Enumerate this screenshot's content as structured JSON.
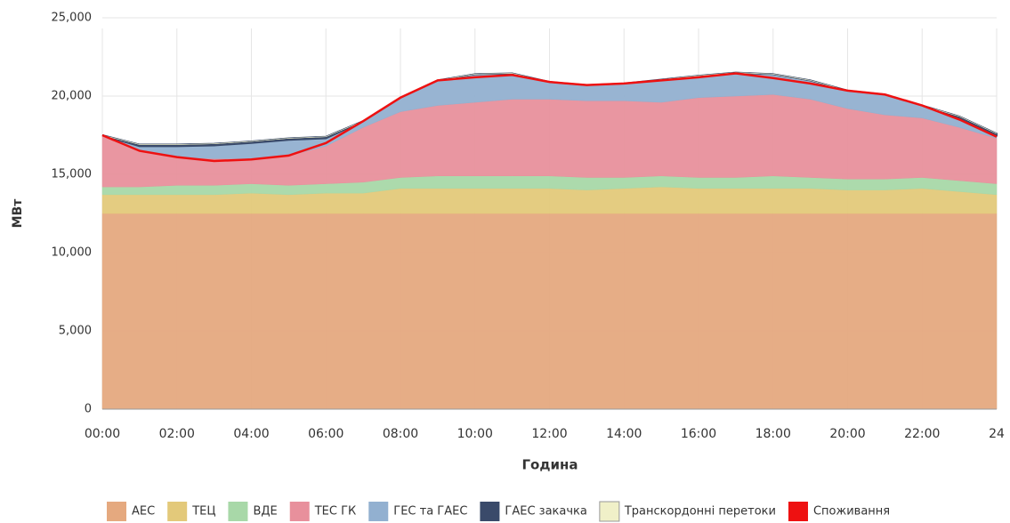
{
  "chart_data": {
    "type": "stacked_area",
    "y_label": "МВт",
    "x_label": "Година",
    "categories": [
      "00:00",
      null,
      "02:00",
      null,
      "04:00",
      null,
      "06:00",
      null,
      "08:00",
      null,
      "10:00",
      null,
      "12:00",
      null,
      "14:00",
      null,
      "16:00",
      null,
      "18:00",
      null,
      "20:00",
      null,
      "22:00",
      null,
      "24"
    ],
    "ylim": [
      0,
      25000
    ],
    "yticks": [
      0,
      {
        "value": 5000,
        "label": "5,000"
      },
      {
        "value": 10000,
        "label": "10,000"
      },
      {
        "value": 15000,
        "label": "15,000"
      },
      {
        "value": 20000,
        "label": "20,000"
      },
      {
        "value": 25000,
        "label": "25,000"
      }
    ],
    "grid": true,
    "legend": "bottom",
    "series": [
      {
        "name": "АЕС",
        "color": "#e5a97f",
        "values": [
          12500,
          12500,
          12500,
          12500,
          12500,
          12500,
          12500,
          12500,
          12500,
          12500,
          12500,
          12500,
          12500,
          12500,
          12500,
          12500,
          12500,
          12500,
          12500,
          12500,
          12500,
          12500,
          12500,
          12500,
          12500
        ]
      },
      {
        "name": "ТЕЦ",
        "color": "#e3c97a",
        "values": [
          1200,
          1200,
          1200,
          1200,
          1300,
          1200,
          1300,
          1300,
          1600,
          1600,
          1600,
          1600,
          1600,
          1500,
          1600,
          1700,
          1600,
          1600,
          1600,
          1600,
          1500,
          1500,
          1600,
          1400,
          1200
        ]
      },
      {
        "name": "ВДЕ",
        "color": "#a8d8a8",
        "values": [
          500,
          500,
          600,
          600,
          600,
          600,
          600,
          700,
          700,
          800,
          800,
          800,
          800,
          800,
          700,
          700,
          700,
          700,
          800,
          700,
          700,
          700,
          700,
          700,
          700
        ]
      },
      {
        "name": "ТЕС ГК",
        "color": "#e8909c",
        "values": [
          3300,
          2300,
          1800,
          1700,
          1600,
          1900,
          2400,
          3500,
          4200,
          4500,
          4700,
          4900,
          4900,
          4900,
          4900,
          4700,
          5100,
          5200,
          5200,
          5000,
          4500,
          4100,
          3800,
          3400,
          2900
        ]
      },
      {
        "name": "ГЕС та ГАЕС",
        "color": "#92b0d0",
        "values": [
          0,
          300,
          700,
          850,
          1000,
          1000,
          500,
          400,
          900,
          1600,
          1800,
          1650,
          1100,
          1000,
          1100,
          1450,
          1400,
          1500,
          1300,
          1200,
          1150,
          1300,
          800,
          600,
          200
        ]
      },
      {
        "name": "ГАЕС закачка",
        "color": "#3a4a6a",
        "values": [
          0,
          100,
          100,
          100,
          100,
          100,
          100,
          0,
          0,
          0,
          0,
          0,
          0,
          0,
          0,
          0,
          0,
          0,
          0,
          0,
          0,
          0,
          0,
          100,
          100
        ]
      },
      {
        "name": "Транскордонні перетоки",
        "color": "#f0f0c8",
        "values": [
          0,
          0,
          0,
          0,
          0,
          0,
          0,
          0,
          0,
          0,
          0,
          0,
          0,
          0,
          0,
          0,
          0,
          0,
          0,
          0,
          0,
          0,
          0,
          0,
          0
        ]
      }
    ],
    "line_series": {
      "name": "Споживання",
      "color": "#ee1111",
      "values": [
        17500,
        16500,
        16100,
        15850,
        15950,
        16200,
        17000,
        18400,
        19900,
        21000,
        21200,
        21350,
        20900,
        20700,
        20800,
        21000,
        21200,
        21450,
        21150,
        20800,
        20350,
        20100,
        19400,
        18500,
        17400
      ]
    }
  }
}
